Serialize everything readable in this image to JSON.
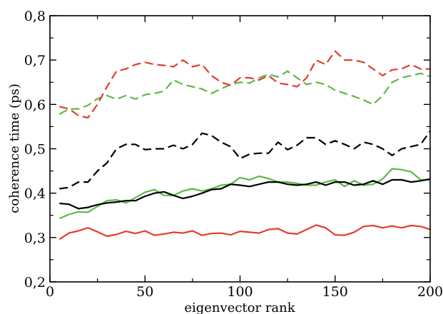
{
  "chart_data": {
    "type": "line",
    "title": "",
    "xlabel": "eigenvector rank",
    "ylabel": "coherence time (ps)",
    "xlim": [
      0,
      200
    ],
    "ylim": [
      0.2,
      0.8
    ],
    "x_ticks": [
      0,
      50,
      100,
      150,
      200
    ],
    "y_ticks": [
      0.2,
      0.3,
      0.4,
      0.5,
      0.6,
      0.7,
      0.8
    ],
    "x_tick_labels": [
      "0",
      "50",
      "100",
      "150",
      "200"
    ],
    "y_tick_labels": [
      "0,2",
      "0,3",
      "0,4",
      "0,5",
      "0,6",
      "0,7",
      "0,8"
    ],
    "grid": false,
    "legend": "none",
    "series": [
      {
        "color": "#e53c2e",
        "style": "solid",
        "x": [
          5,
          10,
          15,
          20,
          25,
          30,
          35,
          40,
          45,
          50,
          55,
          60,
          65,
          70,
          75,
          80,
          85,
          90,
          95,
          100,
          105,
          110,
          115,
          120,
          125,
          130,
          135,
          140,
          145,
          150,
          155,
          160,
          165,
          170,
          175,
          180,
          185,
          190,
          195,
          200
        ],
        "y": [
          0.296,
          0.31,
          0.315,
          0.322,
          0.313,
          0.303,
          0.307,
          0.314,
          0.309,
          0.315,
          0.305,
          0.308,
          0.312,
          0.31,
          0.315,
          0.305,
          0.309,
          0.31,
          0.306,
          0.314,
          0.312,
          0.31,
          0.318,
          0.32,
          0.31,
          0.308,
          0.318,
          0.328,
          0.322,
          0.306,
          0.305,
          0.312,
          0.325,
          0.327,
          0.322,
          0.326,
          0.322,
          0.327,
          0.325,
          0.318
        ]
      },
      {
        "color": "#5cb946",
        "style": "solid",
        "x": [
          5,
          10,
          15,
          20,
          25,
          30,
          35,
          40,
          45,
          50,
          55,
          60,
          65,
          70,
          75,
          80,
          85,
          90,
          95,
          100,
          105,
          110,
          115,
          120,
          125,
          130,
          135,
          140,
          145,
          150,
          155,
          160,
          165,
          170,
          175,
          180,
          185,
          190,
          195,
          200
        ],
        "y": [
          0.343,
          0.352,
          0.358,
          0.357,
          0.37,
          0.383,
          0.385,
          0.378,
          0.39,
          0.402,
          0.408,
          0.395,
          0.395,
          0.405,
          0.41,
          0.405,
          0.41,
          0.418,
          0.42,
          0.435,
          0.43,
          0.438,
          0.433,
          0.425,
          0.425,
          0.422,
          0.418,
          0.418,
          0.425,
          0.43,
          0.415,
          0.428,
          0.418,
          0.42,
          0.432,
          0.455,
          0.453,
          0.448,
          0.43,
          0.43
        ]
      },
      {
        "color": "#000000",
        "style": "solid",
        "x": [
          5,
          10,
          15,
          20,
          25,
          30,
          35,
          40,
          45,
          50,
          55,
          60,
          65,
          70,
          75,
          80,
          85,
          90,
          95,
          100,
          105,
          110,
          115,
          120,
          125,
          130,
          135,
          140,
          145,
          150,
          155,
          160,
          165,
          170,
          175,
          180,
          185,
          190,
          195,
          200
        ],
        "y": [
          0.377,
          0.375,
          0.365,
          0.368,
          0.374,
          0.378,
          0.38,
          0.383,
          0.383,
          0.393,
          0.4,
          0.403,
          0.395,
          0.388,
          0.393,
          0.4,
          0.408,
          0.41,
          0.42,
          0.418,
          0.415,
          0.42,
          0.425,
          0.425,
          0.42,
          0.418,
          0.42,
          0.425,
          0.418,
          0.425,
          0.425,
          0.418,
          0.42,
          0.428,
          0.42,
          0.43,
          0.43,
          0.425,
          0.428,
          0.432
        ]
      },
      {
        "color": "#000000",
        "style": "dashed",
        "x": [
          5,
          10,
          15,
          20,
          25,
          30,
          35,
          40,
          45,
          50,
          55,
          60,
          65,
          70,
          75,
          80,
          85,
          90,
          95,
          100,
          105,
          110,
          115,
          120,
          125,
          130,
          135,
          140,
          145,
          150,
          155,
          160,
          165,
          170,
          175,
          180,
          185,
          190,
          195,
          200
        ],
        "y": [
          0.41,
          0.413,
          0.425,
          0.425,
          0.45,
          0.468,
          0.5,
          0.51,
          0.51,
          0.498,
          0.5,
          0.5,
          0.508,
          0.5,
          0.51,
          0.535,
          0.53,
          0.515,
          0.505,
          0.478,
          0.488,
          0.49,
          0.49,
          0.515,
          0.498,
          0.508,
          0.525,
          0.525,
          0.51,
          0.518,
          0.51,
          0.5,
          0.515,
          0.51,
          0.5,
          0.485,
          0.5,
          0.505,
          0.51,
          0.54
        ]
      },
      {
        "color": "#5cb946",
        "style": "dashed",
        "x": [
          5,
          10,
          15,
          20,
          25,
          30,
          35,
          40,
          45,
          50,
          55,
          60,
          65,
          70,
          75,
          80,
          85,
          90,
          95,
          100,
          105,
          110,
          115,
          120,
          125,
          130,
          135,
          140,
          145,
          150,
          155,
          160,
          165,
          170,
          175,
          180,
          185,
          190,
          195,
          200
        ],
        "y": [
          0.578,
          0.59,
          0.59,
          0.598,
          0.613,
          0.62,
          0.612,
          0.62,
          0.612,
          0.622,
          0.625,
          0.63,
          0.655,
          0.645,
          0.64,
          0.635,
          0.625,
          0.635,
          0.645,
          0.65,
          0.648,
          0.66,
          0.668,
          0.662,
          0.675,
          0.66,
          0.645,
          0.65,
          0.645,
          0.632,
          0.625,
          0.618,
          0.61,
          0.6,
          0.62,
          0.65,
          0.66,
          0.665,
          0.67,
          0.663
        ]
      },
      {
        "color": "#e53c2e",
        "style": "dashed",
        "x": [
          5,
          10,
          15,
          20,
          25,
          30,
          35,
          40,
          45,
          50,
          55,
          60,
          65,
          70,
          75,
          80,
          85,
          90,
          95,
          100,
          105,
          110,
          115,
          120,
          125,
          130,
          135,
          140,
          145,
          150,
          155,
          160,
          165,
          170,
          175,
          180,
          185,
          190,
          195,
          200
        ],
        "y": [
          0.595,
          0.59,
          0.575,
          0.57,
          0.6,
          0.64,
          0.675,
          0.68,
          0.69,
          0.695,
          0.69,
          0.688,
          0.685,
          0.7,
          0.685,
          0.69,
          0.665,
          0.65,
          0.643,
          0.66,
          0.66,
          0.655,
          0.665,
          0.648,
          0.645,
          0.64,
          0.66,
          0.7,
          0.69,
          0.72,
          0.7,
          0.7,
          0.695,
          0.68,
          0.665,
          0.678,
          0.68,
          0.69,
          0.68,
          0.68
        ]
      }
    ]
  }
}
